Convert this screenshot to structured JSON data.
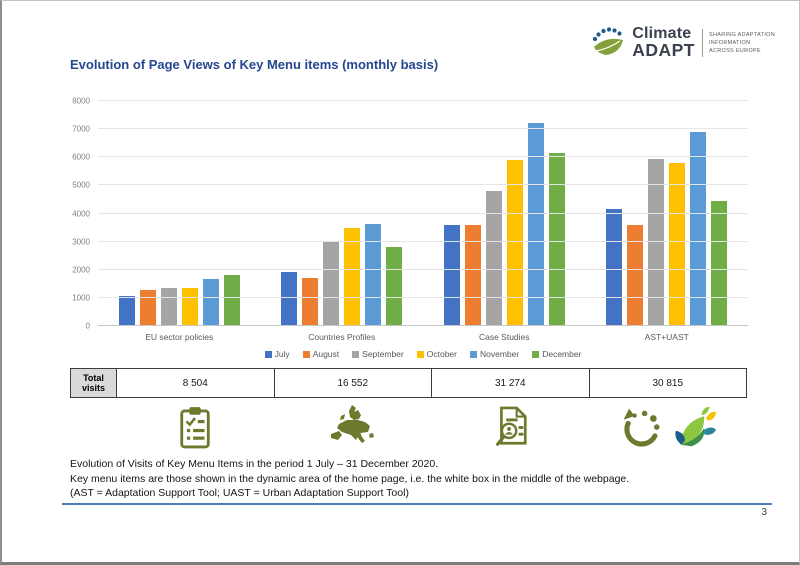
{
  "header": {
    "logo": {
      "brand_line1": "Climate",
      "brand_line2": "ADAPT",
      "tagline_line1": "SHARING ADAPTATION",
      "tagline_line2": "INFORMATION",
      "tagline_line3": "ACROSS EUROPE"
    }
  },
  "title": "Evolution of Page Views of Key Menu items (monthly basis)",
  "chart_data": {
    "type": "bar",
    "title": "Evolution of Page Views of Key Menu items (monthly basis)",
    "categories": [
      "EU sector policies",
      "Countries Profiles",
      "Case Studies",
      "AST+UAST"
    ],
    "series": [
      {
        "name": "July",
        "color": "#4472C4",
        "values": [
          1050,
          1920,
          3600,
          4150
        ]
      },
      {
        "name": "August",
        "color": "#ED7D31",
        "values": [
          1280,
          1690,
          3600,
          3600
        ]
      },
      {
        "name": "September",
        "color": "#A5A5A5",
        "values": [
          1350,
          3020,
          4800,
          5930
        ]
      },
      {
        "name": "October",
        "color": "#FFC000",
        "values": [
          1340,
          3480,
          5890,
          5780
        ]
      },
      {
        "name": "November",
        "color": "#5B9BD5",
        "values": [
          1670,
          3640,
          7220,
          6900
        ]
      },
      {
        "name": "December",
        "color": "#70AD47",
        "values": [
          1814,
          2802,
          6164,
          4455
        ]
      }
    ],
    "xlabel": "",
    "ylabel": "",
    "ylim": [
      0,
      8000
    ],
    "ytick_step": 1000,
    "grid": true,
    "legend_position": "bottom"
  },
  "totals_table": {
    "row_header": "Total visits",
    "values": [
      "8 504",
      "16 552",
      "31 274",
      "30 815"
    ]
  },
  "icons": [
    "clipboard-checklist-icon",
    "europe-map-icon",
    "document-search-icon",
    "cycle-icon",
    "adaptation-leaves-icon"
  ],
  "footnote": {
    "line1": "Evolution of Visits of Key Menu Items in the period 1 July – 31 December 2020.",
    "line2": "Key menu items are those shown in the dynamic area of the home page, i.e. the white box in the middle of the webpage.",
    "line3": "(AST = Adaptation Support Tool; UAST = Urban Adaptation Support Tool)"
  },
  "page": {
    "number": "3"
  },
  "colors": {
    "title_blue": "#25478f",
    "rule_blue": "#4d7cb8",
    "icon_olive": "#6d7a2e",
    "table_header_bg": "#d9d9d9"
  }
}
